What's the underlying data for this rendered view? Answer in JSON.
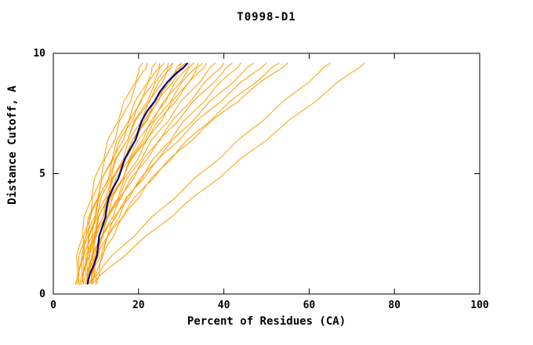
{
  "chart_data": {
    "type": "line",
    "title": "T0998-D1",
    "xlabel": "Percent of Residues (CA)",
    "ylabel": "Distance Cutoff, A",
    "xlim": [
      0,
      100
    ],
    "ylim": [
      0,
      10
    ],
    "x_ticks": [
      0,
      20,
      40,
      60,
      80,
      100
    ],
    "y_ticks": [
      0,
      5,
      10
    ],
    "grid": false,
    "legend_position": "none",
    "colors": {
      "model": "#FF9D00",
      "highlight": "#00008B",
      "axis": "#000000",
      "background": "#FFFFFF"
    },
    "y_samples": [
      0.4,
      1.2,
      2.0,
      2.8,
      3.6,
      4.4,
      5.2,
      6.0,
      6.8,
      7.6,
      8.4,
      9.2,
      9.6
    ],
    "series": [
      {
        "id": "model-01",
        "x": [
          5.2,
          5.6,
          6.1,
          7.0,
          8.1,
          9.3,
          10.7,
          12.3,
          14.0,
          15.9,
          17.9,
          20.0,
          21.0
        ]
      },
      {
        "id": "model-02",
        "x": [
          6.0,
          6.3,
          7.0,
          7.9,
          9.0,
          10.2,
          11.6,
          13.2,
          15.0,
          16.8,
          18.8,
          20.9,
          22.0
        ]
      },
      {
        "id": "model-03",
        "x": [
          6.2,
          6.6,
          7.3,
          8.3,
          9.5,
          11.0,
          12.6,
          14.3,
          16.3,
          18.4,
          20.6,
          23.0,
          24.0
        ]
      },
      {
        "id": "model-04",
        "x": [
          7.0,
          7.4,
          8.1,
          9.1,
          10.3,
          11.8,
          13.4,
          15.1,
          17.1,
          19.2,
          21.4,
          23.8,
          25.0
        ]
      },
      {
        "id": "model-05",
        "x": [
          5.5,
          5.9,
          6.8,
          7.9,
          9.3,
          10.9,
          12.7,
          14.8,
          17.0,
          19.4,
          21.9,
          24.6,
          26.0
        ]
      },
      {
        "id": "model-06",
        "x": [
          7.0,
          7.4,
          8.2,
          9.3,
          10.7,
          12.3,
          14.1,
          16.0,
          18.2,
          20.5,
          23.0,
          25.6,
          27.0
        ]
      },
      {
        "id": "model-07",
        "x": [
          8.0,
          8.4,
          9.2,
          10.3,
          11.7,
          13.3,
          15.1,
          17.0,
          19.2,
          21.5,
          24.0,
          26.6,
          28.0
        ]
      },
      {
        "id": "model-08",
        "x": [
          6.0,
          6.4,
          7.3,
          8.6,
          10.1,
          11.8,
          13.8,
          15.9,
          18.3,
          20.9,
          23.6,
          26.5,
          28.0
        ]
      },
      {
        "id": "model-09",
        "x": [
          7.5,
          7.9,
          8.9,
          10.1,
          11.7,
          13.4,
          15.4,
          17.7,
          20.1,
          22.7,
          25.5,
          28.5,
          30.0
        ]
      },
      {
        "id": "model-10",
        "x": [
          8.0,
          8.4,
          9.3,
          10.6,
          12.1,
          13.8,
          15.8,
          17.9,
          20.3,
          22.9,
          25.6,
          28.5,
          30.0
        ]
      },
      {
        "id": "model-11",
        "x": [
          6.5,
          7.0,
          8.0,
          9.4,
          11.0,
          13.0,
          15.2,
          17.6,
          20.2,
          23.1,
          26.1,
          29.3,
          31.0
        ]
      },
      {
        "id": "model-12",
        "x": [
          9.0,
          9.5,
          10.4,
          11.7,
          13.3,
          15.1,
          17.1,
          19.4,
          21.9,
          24.6,
          27.4,
          30.4,
          32.0
        ]
      },
      {
        "id": "model-13",
        "x": [
          7.0,
          7.5,
          8.6,
          10.0,
          11.8,
          13.9,
          16.2,
          18.8,
          21.6,
          24.6,
          27.8,
          31.2,
          33.0
        ]
      },
      {
        "id": "model-14",
        "x": [
          8.0,
          8.5,
          9.6,
          11.0,
          12.8,
          14.9,
          17.2,
          19.8,
          22.6,
          25.6,
          28.8,
          32.2,
          34.0
        ]
      },
      {
        "id": "model-15",
        "x": [
          9.0,
          9.5,
          10.6,
          12.0,
          13.8,
          15.9,
          18.2,
          20.8,
          23.6,
          26.6,
          29.8,
          33.2,
          35.0
        ]
      },
      {
        "id": "model-16",
        "x": [
          7.0,
          7.6,
          8.8,
          10.4,
          12.4,
          14.7,
          17.2,
          20.1,
          23.2,
          26.6,
          30.2,
          34.0,
          36.0
        ]
      },
      {
        "id": "model-17",
        "x": [
          8.5,
          9.1,
          10.3,
          12.0,
          14.0,
          16.3,
          18.9,
          21.8,
          25.0,
          28.4,
          32.1,
          36.0,
          38.0
        ]
      },
      {
        "id": "model-18",
        "x": [
          9.0,
          9.6,
          10.9,
          12.6,
          14.7,
          17.2,
          19.9,
          23.0,
          26.4,
          30.0,
          33.8,
          37.9,
          40.0
        ]
      },
      {
        "id": "model-19",
        "x": [
          8.0,
          8.7,
          10.1,
          12.0,
          14.3,
          17.0,
          20.0,
          23.4,
          27.0,
          31.0,
          35.2,
          39.7,
          42.0
        ]
      },
      {
        "id": "model-20",
        "x": [
          10.0,
          10.7,
          12.1,
          14.0,
          16.3,
          19.0,
          22.0,
          25.4,
          29.0,
          33.0,
          37.2,
          41.7,
          44.0
        ]
      },
      {
        "id": "model-21",
        "x": [
          9.0,
          9.8,
          11.3,
          13.4,
          16.0,
          19.0,
          22.4,
          26.2,
          30.3,
          34.7,
          39.4,
          44.4,
          47.0
        ]
      },
      {
        "id": "model-22",
        "x": [
          8.0,
          8.8,
          10.6,
          12.9,
          15.8,
          19.1,
          22.8,
          27.0,
          31.5,
          36.4,
          41.6,
          47.1,
          50.0
        ]
      },
      {
        "id": "model-23",
        "x": [
          10.0,
          10.9,
          12.6,
          15.0,
          18.0,
          21.4,
          25.2,
          29.4,
          34.1,
          39.1,
          44.4,
          50.1,
          53.0
        ]
      },
      {
        "id": "model-24",
        "x": [
          9.0,
          9.9,
          11.8,
          14.4,
          17.5,
          21.1,
          25.2,
          29.8,
          34.8,
          40.1,
          45.8,
          51.9,
          55.0
        ]
      },
      {
        "id": "model-25",
        "x": [
          8.0,
          11.9,
          16.3,
          21.0,
          25.8,
          30.8,
          35.9,
          41.1,
          46.2,
          51.5,
          56.9,
          62.3,
          65.0
        ]
      },
      {
        "id": "model-26",
        "x": [
          9.0,
          13.9,
          19.2,
          24.7,
          30.1,
          35.7,
          41.3,
          46.9,
          52.6,
          58.3,
          64.1,
          69.9,
          73.0
        ]
      }
    ],
    "highlight_series": {
      "id": "consensus",
      "x": [
        8.0,
        9.5,
        10.5,
        11.5,
        12.5,
        14.0,
        16.0,
        18.0,
        20.0,
        22.0,
        25.0,
        29.0,
        31.5
      ]
    }
  }
}
